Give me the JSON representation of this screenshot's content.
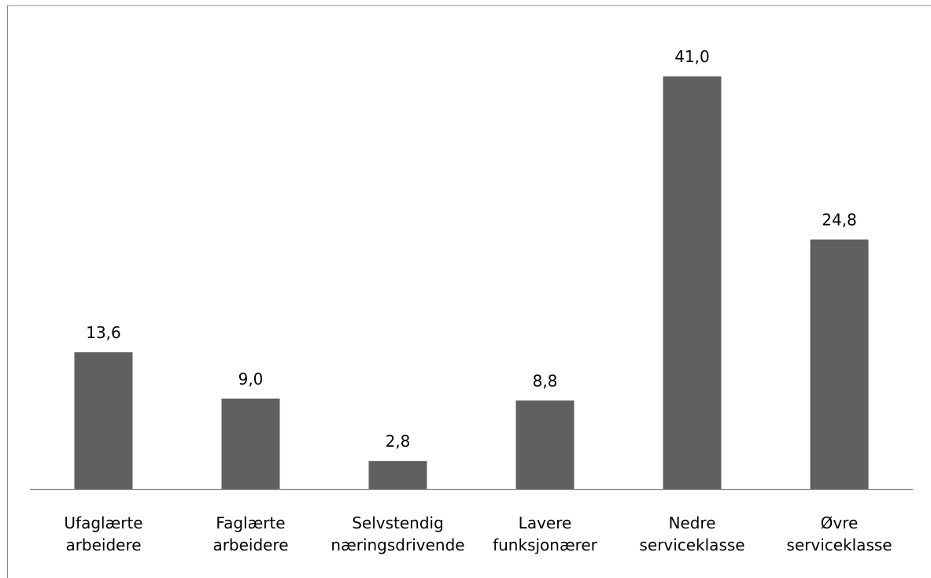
{
  "chart_data": {
    "type": "bar",
    "title": "",
    "xlabel": "",
    "ylabel": "",
    "categories": [
      [
        "Ufaglærte",
        "arbeidere"
      ],
      [
        "Faglærte",
        "arbeidere"
      ],
      [
        "Selvstendig",
        "næringsdrivende"
      ],
      [
        "Lavere",
        "funksjonærer"
      ],
      [
        "Nedre",
        "serviceklasse"
      ],
      [
        "Øvre",
        "serviceklasse"
      ]
    ],
    "values": [
      13.6,
      9.0,
      2.8,
      8.8,
      41.0,
      24.8
    ],
    "value_labels": [
      "13,6",
      "9,0",
      "2,8",
      "8,8",
      "41,0",
      "24,8"
    ],
    "ylim": [
      0,
      45
    ],
    "grid": false,
    "legend": "none",
    "bar_color": "#606060",
    "axis_color": "#868686",
    "frame_color": "#8a8a8a"
  }
}
